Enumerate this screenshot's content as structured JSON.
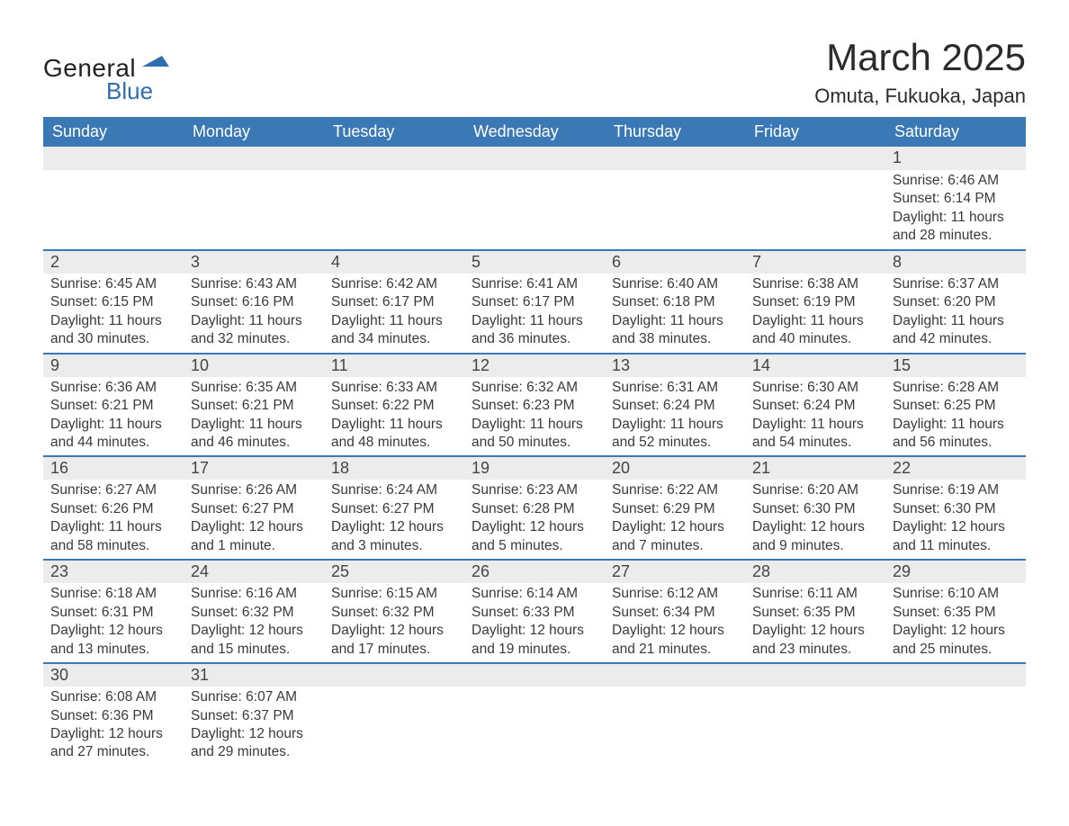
{
  "brand": {
    "text_general": "General",
    "text_blue": "Blue",
    "flag_color": "#2e6eb0"
  },
  "header": {
    "title": "March 2025",
    "subtitle": "Omuta, Fukuoka, Japan"
  },
  "colors": {
    "header_bg": "#3b78b6",
    "header_text": "#ffffff",
    "daynum_bg": "#ececec",
    "row_separator": "#3b78b6",
    "body_text": "#3a3a3a",
    "page_bg": "#ffffff"
  },
  "fontsizes": {
    "title": 42,
    "subtitle": 22,
    "weekday_header": 18,
    "daynum": 18,
    "detail": 15.5
  },
  "weekdays": [
    "Sunday",
    "Monday",
    "Tuesday",
    "Wednesday",
    "Thursday",
    "Friday",
    "Saturday"
  ],
  "weeks": [
    [
      null,
      null,
      null,
      null,
      null,
      null,
      {
        "d": "1",
        "sr": "Sunrise: 6:46 AM",
        "ss": "Sunset: 6:14 PM",
        "dl1": "Daylight: 11 hours",
        "dl2": "and 28 minutes."
      }
    ],
    [
      {
        "d": "2",
        "sr": "Sunrise: 6:45 AM",
        "ss": "Sunset: 6:15 PM",
        "dl1": "Daylight: 11 hours",
        "dl2": "and 30 minutes."
      },
      {
        "d": "3",
        "sr": "Sunrise: 6:43 AM",
        "ss": "Sunset: 6:16 PM",
        "dl1": "Daylight: 11 hours",
        "dl2": "and 32 minutes."
      },
      {
        "d": "4",
        "sr": "Sunrise: 6:42 AM",
        "ss": "Sunset: 6:17 PM",
        "dl1": "Daylight: 11 hours",
        "dl2": "and 34 minutes."
      },
      {
        "d": "5",
        "sr": "Sunrise: 6:41 AM",
        "ss": "Sunset: 6:17 PM",
        "dl1": "Daylight: 11 hours",
        "dl2": "and 36 minutes."
      },
      {
        "d": "6",
        "sr": "Sunrise: 6:40 AM",
        "ss": "Sunset: 6:18 PM",
        "dl1": "Daylight: 11 hours",
        "dl2": "and 38 minutes."
      },
      {
        "d": "7",
        "sr": "Sunrise: 6:38 AM",
        "ss": "Sunset: 6:19 PM",
        "dl1": "Daylight: 11 hours",
        "dl2": "and 40 minutes."
      },
      {
        "d": "8",
        "sr": "Sunrise: 6:37 AM",
        "ss": "Sunset: 6:20 PM",
        "dl1": "Daylight: 11 hours",
        "dl2": "and 42 minutes."
      }
    ],
    [
      {
        "d": "9",
        "sr": "Sunrise: 6:36 AM",
        "ss": "Sunset: 6:21 PM",
        "dl1": "Daylight: 11 hours",
        "dl2": "and 44 minutes."
      },
      {
        "d": "10",
        "sr": "Sunrise: 6:35 AM",
        "ss": "Sunset: 6:21 PM",
        "dl1": "Daylight: 11 hours",
        "dl2": "and 46 minutes."
      },
      {
        "d": "11",
        "sr": "Sunrise: 6:33 AM",
        "ss": "Sunset: 6:22 PM",
        "dl1": "Daylight: 11 hours",
        "dl2": "and 48 minutes."
      },
      {
        "d": "12",
        "sr": "Sunrise: 6:32 AM",
        "ss": "Sunset: 6:23 PM",
        "dl1": "Daylight: 11 hours",
        "dl2": "and 50 minutes."
      },
      {
        "d": "13",
        "sr": "Sunrise: 6:31 AM",
        "ss": "Sunset: 6:24 PM",
        "dl1": "Daylight: 11 hours",
        "dl2": "and 52 minutes."
      },
      {
        "d": "14",
        "sr": "Sunrise: 6:30 AM",
        "ss": "Sunset: 6:24 PM",
        "dl1": "Daylight: 11 hours",
        "dl2": "and 54 minutes."
      },
      {
        "d": "15",
        "sr": "Sunrise: 6:28 AM",
        "ss": "Sunset: 6:25 PM",
        "dl1": "Daylight: 11 hours",
        "dl2": "and 56 minutes."
      }
    ],
    [
      {
        "d": "16",
        "sr": "Sunrise: 6:27 AM",
        "ss": "Sunset: 6:26 PM",
        "dl1": "Daylight: 11 hours",
        "dl2": "and 58 minutes."
      },
      {
        "d": "17",
        "sr": "Sunrise: 6:26 AM",
        "ss": "Sunset: 6:27 PM",
        "dl1": "Daylight: 12 hours",
        "dl2": "and 1 minute."
      },
      {
        "d": "18",
        "sr": "Sunrise: 6:24 AM",
        "ss": "Sunset: 6:27 PM",
        "dl1": "Daylight: 12 hours",
        "dl2": "and 3 minutes."
      },
      {
        "d": "19",
        "sr": "Sunrise: 6:23 AM",
        "ss": "Sunset: 6:28 PM",
        "dl1": "Daylight: 12 hours",
        "dl2": "and 5 minutes."
      },
      {
        "d": "20",
        "sr": "Sunrise: 6:22 AM",
        "ss": "Sunset: 6:29 PM",
        "dl1": "Daylight: 12 hours",
        "dl2": "and 7 minutes."
      },
      {
        "d": "21",
        "sr": "Sunrise: 6:20 AM",
        "ss": "Sunset: 6:30 PM",
        "dl1": "Daylight: 12 hours",
        "dl2": "and 9 minutes."
      },
      {
        "d": "22",
        "sr": "Sunrise: 6:19 AM",
        "ss": "Sunset: 6:30 PM",
        "dl1": "Daylight: 12 hours",
        "dl2": "and 11 minutes."
      }
    ],
    [
      {
        "d": "23",
        "sr": "Sunrise: 6:18 AM",
        "ss": "Sunset: 6:31 PM",
        "dl1": "Daylight: 12 hours",
        "dl2": "and 13 minutes."
      },
      {
        "d": "24",
        "sr": "Sunrise: 6:16 AM",
        "ss": "Sunset: 6:32 PM",
        "dl1": "Daylight: 12 hours",
        "dl2": "and 15 minutes."
      },
      {
        "d": "25",
        "sr": "Sunrise: 6:15 AM",
        "ss": "Sunset: 6:32 PM",
        "dl1": "Daylight: 12 hours",
        "dl2": "and 17 minutes."
      },
      {
        "d": "26",
        "sr": "Sunrise: 6:14 AM",
        "ss": "Sunset: 6:33 PM",
        "dl1": "Daylight: 12 hours",
        "dl2": "and 19 minutes."
      },
      {
        "d": "27",
        "sr": "Sunrise: 6:12 AM",
        "ss": "Sunset: 6:34 PM",
        "dl1": "Daylight: 12 hours",
        "dl2": "and 21 minutes."
      },
      {
        "d": "28",
        "sr": "Sunrise: 6:11 AM",
        "ss": "Sunset: 6:35 PM",
        "dl1": "Daylight: 12 hours",
        "dl2": "and 23 minutes."
      },
      {
        "d": "29",
        "sr": "Sunrise: 6:10 AM",
        "ss": "Sunset: 6:35 PM",
        "dl1": "Daylight: 12 hours",
        "dl2": "and 25 minutes."
      }
    ],
    [
      {
        "d": "30",
        "sr": "Sunrise: 6:08 AM",
        "ss": "Sunset: 6:36 PM",
        "dl1": "Daylight: 12 hours",
        "dl2": "and 27 minutes."
      },
      {
        "d": "31",
        "sr": "Sunrise: 6:07 AM",
        "ss": "Sunset: 6:37 PM",
        "dl1": "Daylight: 12 hours",
        "dl2": "and 29 minutes."
      },
      null,
      null,
      null,
      null,
      null
    ]
  ]
}
